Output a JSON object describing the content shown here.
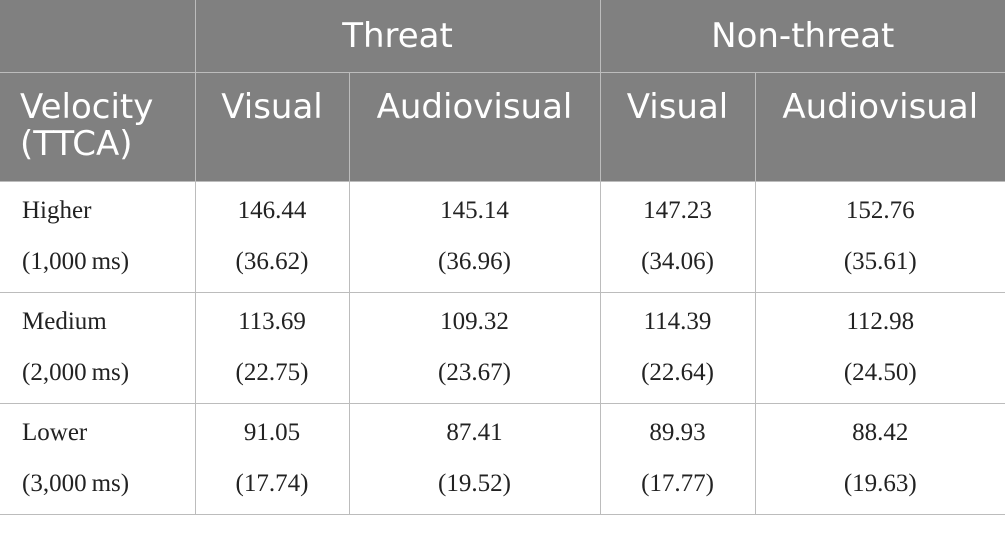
{
  "table": {
    "group_headers": [
      "",
      "Threat",
      "Non-threat"
    ],
    "sub_headers": {
      "rowhead": "Velocity (TTCA)",
      "columns": [
        "Visual",
        "Audiovisual",
        "Visual",
        "Audiovisual"
      ]
    },
    "rows": [
      {
        "label": "Higher",
        "sublabel": "(1,000 ms)",
        "cells": [
          {
            "mean": "146.44",
            "sd": "(36.62)"
          },
          {
            "mean": "145.14",
            "sd": "(36.96)"
          },
          {
            "mean": "147.23",
            "sd": "(34.06)"
          },
          {
            "mean": "152.76",
            "sd": "(35.61)"
          }
        ]
      },
      {
        "label": "Medium",
        "sublabel": "(2,000 ms)",
        "cells": [
          {
            "mean": "113.69",
            "sd": "(22.75)"
          },
          {
            "mean": "109.32",
            "sd": "(23.67)"
          },
          {
            "mean": "114.39",
            "sd": "(22.64)"
          },
          {
            "mean": "112.98",
            "sd": "(24.50)"
          }
        ]
      },
      {
        "label": "Lower",
        "sublabel": "(3,000 ms)",
        "cells": [
          {
            "mean": "91.05",
            "sd": "(17.74)"
          },
          {
            "mean": "87.41",
            "sd": "(19.52)"
          },
          {
            "mean": "89.93",
            "sd": "(17.77)"
          },
          {
            "mean": "88.42",
            "sd": "(19.63)"
          }
        ]
      }
    ],
    "colors": {
      "header_bg": "#808080",
      "header_text": "#ffffff",
      "border": "#bcbcbc",
      "body_text": "#222222"
    }
  }
}
